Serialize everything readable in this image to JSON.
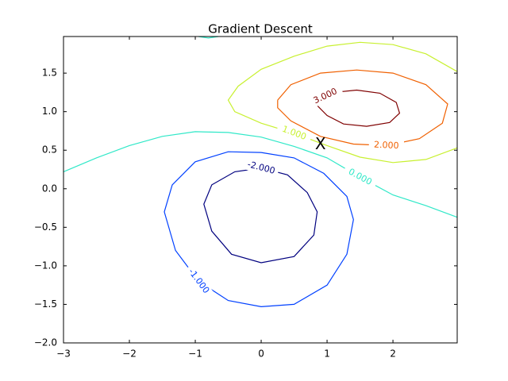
{
  "chart_data": {
    "type": "contour",
    "title": "Gradient Descent",
    "xlim": [
      -3,
      2.975
    ],
    "ylim": [
      -2,
      1.975
    ],
    "xticks": [
      {
        "value": -3,
        "label": "−3"
      },
      {
        "value": -2,
        "label": "−2"
      },
      {
        "value": -1,
        "label": "−1"
      },
      0,
      1,
      2
    ],
    "yticks": [
      {
        "value": -2,
        "label": "−2.0"
      },
      {
        "value": -1.5,
        "label": "−1.5"
      },
      {
        "value": -1,
        "label": "−1.0"
      },
      {
        "value": -0.5,
        "label": "−0.5"
      },
      {
        "value": 0,
        "label": "0.0"
      },
      0.5,
      {
        "value": 1,
        "label": "1.0"
      },
      1.5
    ],
    "contours": [
      {
        "label": "-2.000",
        "color": "#00007f",
        "x": [
          0,
          0.4,
          0.7,
          0.85,
          0.8,
          0.5,
          0,
          -0.45,
          -0.75,
          -0.87,
          -0.75,
          -0.4,
          0
        ],
        "y": [
          0.27,
          0.18,
          -0.05,
          -0.3,
          -0.6,
          -0.88,
          -0.96,
          -0.85,
          -0.55,
          -0.2,
          0.05,
          0.22,
          0.27
        ]
      },
      {
        "label": "-1.000",
        "color": "#0040ff",
        "x": [
          0,
          0.5,
          0.95,
          1.3,
          1.4,
          1.3,
          1.0,
          0.5,
          0,
          -0.5,
          -0.95,
          -1.3,
          -1.47,
          -1.35,
          -1.0,
          -0.5,
          0
        ],
        "y": [
          0.47,
          0.4,
          0.2,
          -0.1,
          -0.4,
          -0.85,
          -1.25,
          -1.5,
          -1.53,
          -1.45,
          -1.2,
          -0.8,
          -0.3,
          0.05,
          0.35,
          0.48,
          0.47
        ]
      },
      {
        "label": "0.000",
        "color": "#30e8c8",
        "x": [
          -3,
          -2.5,
          -2,
          -1.5,
          -1,
          -0.5,
          0,
          0.5,
          1,
          1.5,
          2,
          2.5,
          2.975,
          null,
          -0.95,
          -0.8,
          -0.65
        ],
        "y": [
          0.22,
          0.4,
          0.56,
          0.68,
          0.74,
          0.73,
          0.67,
          0.55,
          0.4,
          0.15,
          -0.08,
          -0.22,
          -0.37,
          null,
          1.975,
          1.955,
          1.975
        ]
      },
      {
        "label": "1.000",
        "color": "#c8f030",
        "x": [
          2.975,
          2.5,
          2,
          1.5,
          1,
          0.5,
          0,
          -0.35,
          -0.5,
          -0.4,
          0,
          0.5,
          1,
          1.5,
          2,
          2.5,
          2.975
        ],
        "y": [
          1.52,
          1.75,
          1.87,
          1.9,
          1.85,
          1.72,
          1.55,
          1.33,
          1.15,
          1.0,
          0.85,
          0.72,
          0.56,
          0.41,
          0.34,
          0.38,
          0.53
        ]
      },
      {
        "label": "2.000",
        "color": "#f06000",
        "x": [
          0.25,
          0.45,
          0.9,
          1.45,
          2.0,
          2.5,
          2.83,
          2.75,
          2.4,
          1.9,
          1.4,
          0.9,
          0.45,
          0.25,
          0.25
        ],
        "y": [
          1.15,
          1.35,
          1.5,
          1.54,
          1.5,
          1.35,
          1.1,
          0.85,
          0.65,
          0.56,
          0.58,
          0.68,
          0.88,
          1.05,
          1.15
        ]
      },
      {
        "label": "3.000",
        "color": "#7f0000",
        "x": [
          0.85,
          1.1,
          1.45,
          1.8,
          2.05,
          2.1,
          1.95,
          1.6,
          1.25,
          1.0,
          0.85,
          0.85
        ],
        "y": [
          1.15,
          1.25,
          1.28,
          1.24,
          1.12,
          0.98,
          0.86,
          0.81,
          0.84,
          0.95,
          1.08,
          1.15
        ]
      }
    ],
    "annotations": [
      {
        "text": "X",
        "x": 0.9,
        "y": 0.57
      }
    ]
  }
}
